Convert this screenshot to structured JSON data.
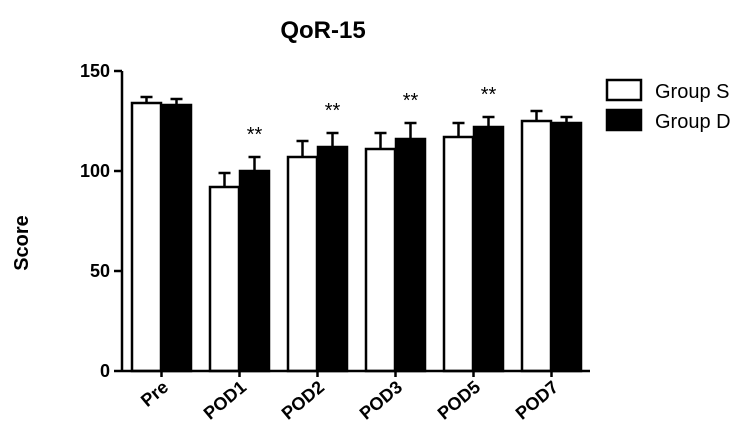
{
  "chart_data": {
    "type": "bar",
    "title": "QoR-15",
    "ylabel": "Score",
    "xlabel": "",
    "ylim": [
      0,
      150
    ],
    "yticks": [
      0,
      50,
      100,
      150
    ],
    "categories": [
      "Pre",
      "POD1",
      "POD2",
      "POD3",
      "POD5",
      "POD7"
    ],
    "series": [
      {
        "name": "Group S",
        "color": "#ffffff",
        "values": [
          134,
          92,
          107,
          111,
          117,
          125
        ],
        "errors": [
          3,
          7,
          8,
          8,
          7,
          5
        ]
      },
      {
        "name": "Group D",
        "color": "#000000",
        "values": [
          133,
          100,
          112,
          116,
          122,
          124
        ],
        "errors": [
          3,
          7,
          7,
          8,
          5,
          3
        ]
      }
    ],
    "annotations": [
      "",
      "**",
      "**",
      "**",
      "**",
      ""
    ],
    "legend_position": "top-right",
    "grid": false
  }
}
